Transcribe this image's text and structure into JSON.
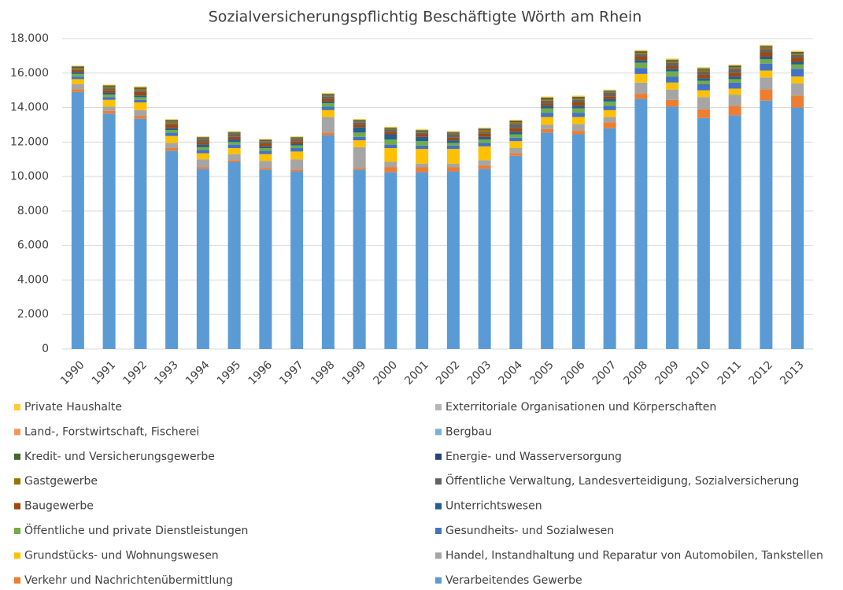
{
  "chart_data": {
    "type": "stacked_bar",
    "title": "Sozialversicherungspflichtig Beschäftigte Wörth am Rhein",
    "categories": [
      "1990",
      "1991",
      "1992",
      "1993",
      "1994",
      "1995",
      "1996",
      "1997",
      "1998",
      "1999",
      "2000",
      "2001",
      "2002",
      "2003",
      "2004",
      "2005",
      "2006",
      "2007",
      "2008",
      "2009",
      "2010",
      "2011",
      "2012",
      "2013"
    ],
    "ylim": [
      0,
      18000
    ],
    "yticks": [
      0,
      {
        "value": 2000,
        "label": "2.000"
      },
      {
        "value": 4000,
        "label": "4.000"
      },
      {
        "value": 6000,
        "label": "6.000"
      },
      {
        "value": 8000,
        "label": "8.000"
      },
      {
        "value": 10000,
        "label": "10.000"
      },
      {
        "value": 12000,
        "label": "12.000"
      },
      {
        "value": 14000,
        "label": "14.000"
      },
      {
        "value": 16000,
        "label": "16.000"
      },
      {
        "value": 18000,
        "label": "18.000"
      }
    ],
    "grid": true,
    "series": [
      {
        "name": "Verarbeitendes Gewerbe",
        "color": "#5b9bd5",
        "values": [
          14900,
          13650,
          13350,
          11500,
          10450,
          10850,
          10400,
          10300,
          12400,
          10400,
          10250,
          10250,
          10300,
          10450,
          11200,
          12550,
          12450,
          12800,
          14500,
          14050,
          13400,
          13550,
          14400,
          14000
        ]
      },
      {
        "name": "Verkehr und Nachrichtenübermittlung",
        "color": "#ed7d31",
        "values": [
          150,
          150,
          150,
          150,
          100,
          100,
          100,
          100,
          150,
          100,
          300,
          300,
          250,
          200,
          150,
          200,
          200,
          350,
          300,
          400,
          500,
          550,
          650,
          700
        ]
      },
      {
        "name": "Handel, Instandhaltung und Reparatur von Automobilen, Tankstellen",
        "color": "#a5a5a5",
        "values": [
          300,
          250,
          350,
          300,
          450,
          350,
          400,
          600,
          900,
          1200,
          300,
          200,
          200,
          300,
          300,
          250,
          400,
          300,
          650,
          600,
          700,
          650,
          700,
          700
        ]
      },
      {
        "name": "Grundstücks- und Wohnungswesen",
        "color": "#ffc000",
        "values": [
          300,
          400,
          450,
          400,
          350,
          350,
          400,
          450,
          400,
          400,
          800,
          850,
          850,
          800,
          400,
          450,
          400,
          400,
          500,
          400,
          400,
          350,
          400,
          400
        ]
      },
      {
        "name": "Gesundheits- und Sozialwesen",
        "color": "#4472c4",
        "values": [
          150,
          150,
          150,
          200,
          200,
          200,
          200,
          200,
          200,
          200,
          200,
          200,
          200,
          200,
          200,
          250,
          250,
          250,
          350,
          350,
          350,
          350,
          400,
          450
        ]
      },
      {
        "name": "Öffentliche und private Dienstleistungen",
        "color": "#70ad47",
        "values": [
          150,
          150,
          150,
          150,
          150,
          150,
          150,
          150,
          200,
          250,
          300,
          250,
          150,
          200,
          200,
          250,
          250,
          250,
          300,
          300,
          200,
          200,
          250,
          250
        ]
      },
      {
        "name": "Unterrichtswesen",
        "color": "#255e91",
        "values": [
          100,
          100,
          100,
          100,
          150,
          150,
          100,
          100,
          100,
          300,
          300,
          250,
          150,
          150,
          150,
          150,
          150,
          150,
          150,
          150,
          150,
          150,
          150,
          150
        ]
      },
      {
        "name": "Baugewerbe",
        "color": "#9e480e",
        "values": [
          100,
          150,
          200,
          200,
          150,
          150,
          150,
          150,
          150,
          150,
          150,
          150,
          150,
          200,
          200,
          150,
          200,
          150,
          200,
          150,
          200,
          200,
          250,
          250
        ]
      },
      {
        "name": "Öffentliche Verwaltung, Landesverteidigung, Sozialversicherung",
        "color": "#636363",
        "values": [
          50,
          100,
          100,
          100,
          150,
          150,
          100,
          100,
          150,
          150,
          100,
          100,
          200,
          100,
          250,
          150,
          150,
          200,
          150,
          200,
          200,
          250,
          200,
          150
        ]
      },
      {
        "name": "Gastgewerbe",
        "color": "#997300",
        "values": [
          100,
          100,
          100,
          100,
          50,
          50,
          50,
          50,
          50,
          50,
          50,
          50,
          50,
          100,
          100,
          100,
          100,
          50,
          100,
          100,
          100,
          100,
          100,
          100
        ]
      },
      {
        "name": "Energie- und Wasserversorgung",
        "color": "#264478",
        "values": [
          30,
          30,
          30,
          30,
          30,
          30,
          30,
          30,
          30,
          30,
          30,
          30,
          30,
          30,
          30,
          30,
          30,
          30,
          30,
          30,
          30,
          30,
          30,
          30
        ]
      },
      {
        "name": "Kredit- und Versicherungsgewerbe",
        "color": "#43682b",
        "values": [
          50,
          50,
          50,
          50,
          50,
          50,
          50,
          50,
          50,
          50,
          50,
          50,
          50,
          50,
          50,
          50,
          50,
          50,
          50,
          50,
          50,
          50,
          50,
          50
        ]
      },
      {
        "name": "Bergbau",
        "color": "#7cafdd",
        "values": [
          0,
          0,
          0,
          0,
          0,
          0,
          0,
          0,
          0,
          0,
          0,
          0,
          0,
          0,
          0,
          0,
          0,
          0,
          0,
          0,
          0,
          0,
          0,
          0
        ]
      },
      {
        "name": "Land-, Forstwirtschaft, Fischerei",
        "color": "#f1975a",
        "values": [
          20,
          20,
          20,
          20,
          20,
          20,
          20,
          20,
          20,
          20,
          20,
          20,
          20,
          20,
          20,
          20,
          20,
          20,
          20,
          20,
          20,
          20,
          20,
          20
        ]
      },
      {
        "name": "Exterritoriale Organisationen und Körperschaften",
        "color": "#b7b7b7",
        "values": [
          0,
          0,
          0,
          0,
          0,
          0,
          0,
          0,
          0,
          0,
          0,
          0,
          0,
          0,
          0,
          0,
          0,
          0,
          0,
          0,
          0,
          0,
          0,
          0
        ]
      },
      {
        "name": "Private Haushalte",
        "color": "#ffcd33",
        "values": [
          30,
          30,
          30,
          30,
          30,
          30,
          30,
          30,
          40,
          40,
          40,
          40,
          40,
          40,
          40,
          40,
          40,
          40,
          40,
          40,
          40,
          40,
          40,
          40
        ]
      }
    ]
  }
}
